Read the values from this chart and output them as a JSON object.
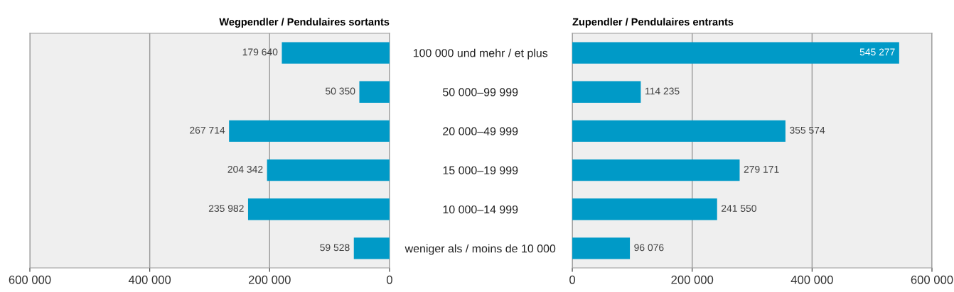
{
  "chart_data": [
    {
      "type": "bar",
      "orientation": "horizontal",
      "title": "Wegpendler / Pendulaires sortants",
      "categories": [
        "100 000 und mehr / et plus",
        "50 000–99 999",
        "20 000–49 999",
        "15 000–19 999",
        "10 000–14 999",
        "weniger als / moins de 10 000"
      ],
      "series": [
        {
          "color": "#009ac7",
          "values": [
            179640,
            50350,
            267714,
            204342,
            235982,
            59528
          ],
          "value_labels": [
            "179 640",
            "50 350",
            "267 714",
            "204 342",
            "235 982",
            "59 528"
          ]
        }
      ],
      "xlim": [
        600000,
        0
      ],
      "xticks": [
        {
          "value": 600000,
          "label": "600 000"
        },
        {
          "value": 400000,
          "label": "400 000"
        },
        {
          "value": 200000,
          "label": "200 000"
        },
        0
      ],
      "grid": "x",
      "legend": false
    },
    {
      "type": "bar",
      "orientation": "horizontal",
      "title": "Zupendler / Pendulaires entrants",
      "categories": [
        "100 000 und mehr / et plus",
        "50 000–99 999",
        "20 000–49 999",
        "15 000–19 999",
        "10 000–14 999",
        "weniger als / moins de 10 000"
      ],
      "series": [
        {
          "color": "#009ac7",
          "values": [
            545277,
            114235,
            355574,
            279171,
            241550,
            96076
          ],
          "value_labels": [
            "545 277",
            "114 235",
            "355 574",
            "279 171",
            "241 550",
            "96 076"
          ]
        }
      ],
      "xlim": [
        0,
        600000
      ],
      "xticks": [
        0,
        {
          "value": 200000,
          "label": "200 000"
        },
        {
          "value": 400000,
          "label": "400 000"
        },
        {
          "value": 600000,
          "label": "600 000"
        }
      ],
      "grid": "x",
      "legend": false,
      "tick_labels": "x"
    }
  ]
}
